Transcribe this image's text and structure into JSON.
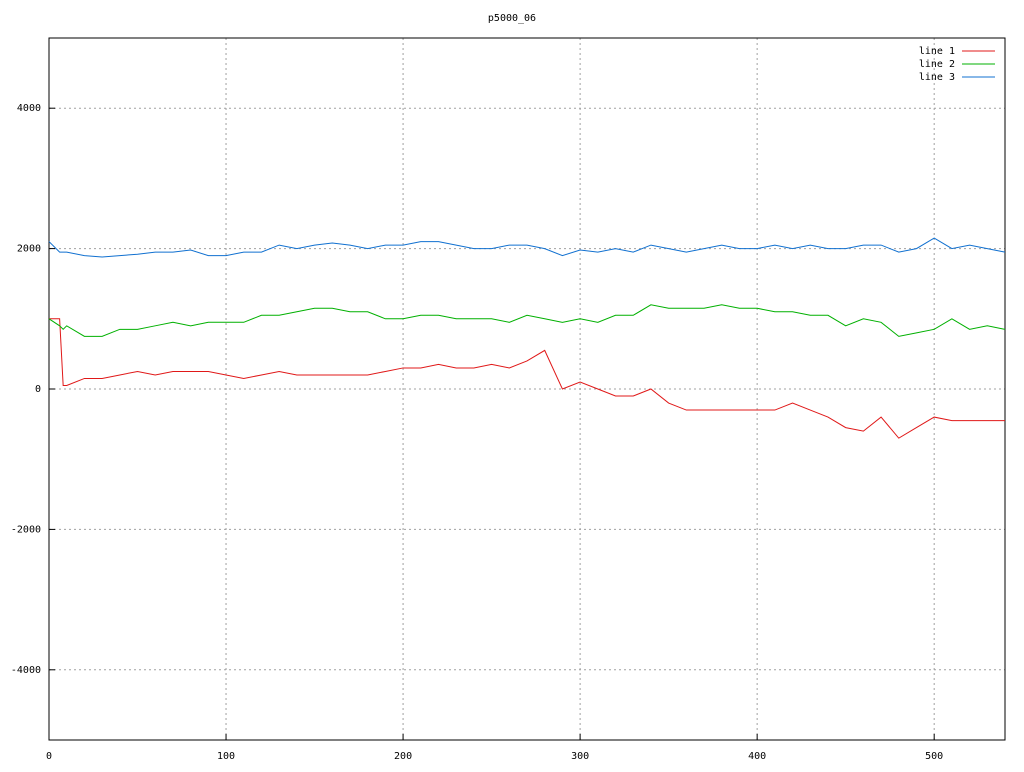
{
  "chart_data": {
    "type": "line",
    "title": "p5000_06",
    "x": [
      0,
      6,
      8,
      10,
      20,
      30,
      40,
      50,
      60,
      70,
      80,
      90,
      100,
      110,
      120,
      130,
      140,
      150,
      160,
      170,
      180,
      190,
      200,
      210,
      220,
      230,
      240,
      250,
      260,
      270,
      280,
      290,
      300,
      310,
      320,
      330,
      340,
      350,
      360,
      370,
      380,
      390,
      400,
      410,
      420,
      430,
      440,
      450,
      460,
      470,
      480,
      490,
      500,
      510,
      520,
      530,
      540
    ],
    "series": [
      {
        "name": "line 1",
        "color": "#e01818",
        "values": [
          1000,
          1000,
          50,
          50,
          150,
          150,
          200,
          250,
          200,
          250,
          250,
          250,
          200,
          150,
          200,
          250,
          200,
          200,
          200,
          200,
          200,
          250,
          300,
          300,
          350,
          300,
          300,
          350,
          300,
          400,
          550,
          0,
          100,
          0,
          -100,
          -100,
          0,
          -200,
          -300,
          -300,
          -300,
          -300,
          -300,
          -300,
          -200,
          -300,
          -400,
          -550,
          -600,
          -400,
          -700,
          -550,
          -400,
          -450,
          -450,
          -450,
          -450
        ]
      },
      {
        "name": "line 2",
        "color": "#00b000",
        "values": [
          1000,
          900,
          850,
          900,
          750,
          750,
          850,
          850,
          900,
          950,
          900,
          950,
          950,
          950,
          1050,
          1050,
          1100,
          1150,
          1150,
          1100,
          1100,
          1000,
          1000,
          1050,
          1050,
          1000,
          1000,
          1000,
          950,
          1050,
          1000,
          950,
          1000,
          950,
          1050,
          1050,
          1200,
          1150,
          1150,
          1150,
          1200,
          1150,
          1150,
          1100,
          1100,
          1050,
          1050,
          900,
          1000,
          950,
          750,
          800,
          850,
          1000,
          850,
          900,
          850
        ]
      },
      {
        "name": "line 3",
        "color": "#1070d0",
        "values": [
          2100,
          1950,
          1950,
          1950,
          1900,
          1880,
          1900,
          1920,
          1950,
          1950,
          1980,
          1900,
          1900,
          1950,
          1950,
          2050,
          2000,
          2050,
          2080,
          2050,
          2000,
          2050,
          2050,
          2100,
          2100,
          2050,
          2000,
          2000,
          2050,
          2050,
          2000,
          1900,
          1980,
          1950,
          2000,
          1950,
          2050,
          2000,
          1950,
          2000,
          2050,
          2000,
          2000,
          2050,
          2000,
          2050,
          2000,
          2000,
          2050,
          2050,
          1950,
          2000,
          2150,
          2000,
          2050,
          2000,
          1950
        ]
      }
    ],
    "xlim": [
      0,
      540
    ],
    "ylim": [
      -5000,
      5000
    ],
    "xticks": [
      0,
      100,
      200,
      300,
      400,
      500
    ],
    "yticks": [
      -4000,
      -2000,
      0,
      2000,
      4000
    ],
    "grid": true,
    "legend": "top-right"
  }
}
